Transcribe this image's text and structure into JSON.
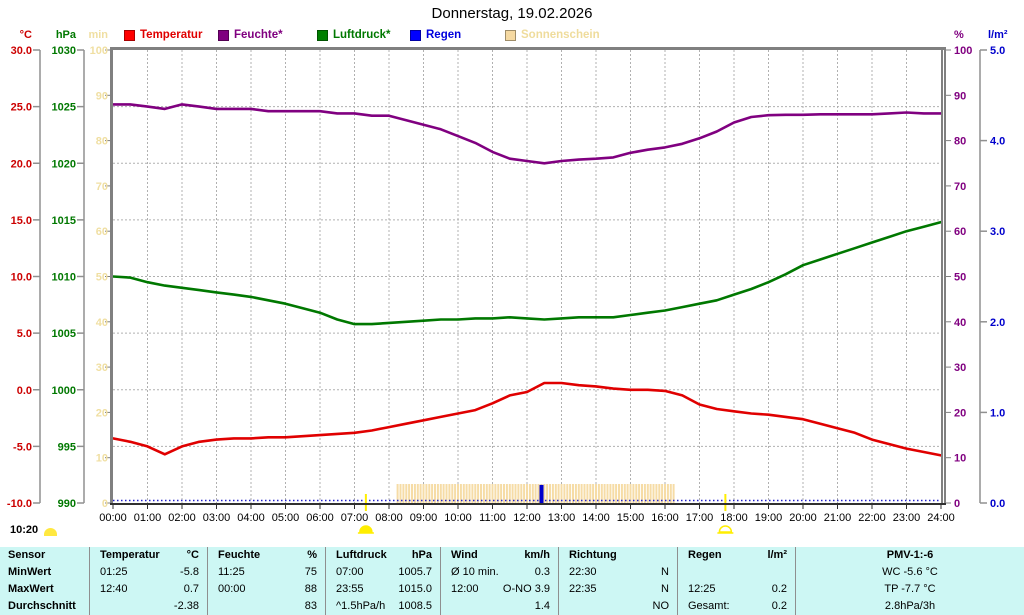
{
  "title": "Donnerstag, 19.02.2026",
  "clock": {
    "time": "10:20",
    "icon": "sun-icon"
  },
  "legend": [
    {
      "label": "Temperatur",
      "color": "#ff0000",
      "text_color": "#e00000"
    },
    {
      "label": "Feuchte*",
      "color": "#800080",
      "text_color": "#800080"
    },
    {
      "label": "Luftdruck*",
      "color": "#008000",
      "text_color": "#007800"
    },
    {
      "label": "Regen",
      "color": "#0000ff",
      "text_color": "#0000dd"
    },
    {
      "label": "Sonnenschein",
      "color": "#f5d9a2",
      "text_color": "#efdc9c"
    }
  ],
  "chart_data": {
    "type": "line",
    "title": "Donnerstag, 19.02.2026",
    "x_range_hours": [
      0,
      24
    ],
    "x_ticks": [
      "00:00",
      "01:00",
      "02:00",
      "03:00",
      "04:00",
      "05:00",
      "06:00",
      "07:00",
      "08:00",
      "09:00",
      "10:00",
      "11:00",
      "12:00",
      "13:00",
      "14:00",
      "15:00",
      "16:00",
      "17:00",
      "18:00",
      "19:00",
      "20:00",
      "21:00",
      "22:00",
      "23:00",
      "24:00"
    ],
    "grid": true,
    "axes": {
      "temperature": {
        "unit": "°C",
        "color": "#cc0000",
        "range": [
          -10,
          30
        ],
        "ticks": [
          "30.0",
          "25.0",
          "20.0",
          "15.0",
          "10.0",
          "5.0",
          "0.0",
          "-5.0",
          "-10.0"
        ]
      },
      "pressure": {
        "unit": "hPa",
        "color": "#007800",
        "range": [
          990,
          1030
        ],
        "ticks": [
          "1030",
          "1025",
          "1020",
          "1015",
          "1010",
          "1005",
          "1000",
          "995",
          "990"
        ]
      },
      "sunshine": {
        "unit": "min",
        "color": "#f0dfa2",
        "range": [
          0,
          100
        ],
        "ticks": [
          "100",
          "90",
          "80",
          "70",
          "60",
          "50",
          "40",
          "30",
          "20",
          "10",
          "0"
        ]
      },
      "humidity": {
        "unit": "%",
        "color": "#800080",
        "range": [
          0,
          100
        ],
        "ticks": [
          "100",
          "90",
          "80",
          "70",
          "60",
          "50",
          "40",
          "30",
          "20",
          "10",
          "0"
        ]
      },
      "rain": {
        "unit": "l/m²",
        "color": "#0000cc",
        "range": [
          0,
          5
        ],
        "ticks": [
          "5.0",
          "4.0",
          "3.0",
          "2.0",
          "1.0",
          "0.0"
        ]
      }
    },
    "series": [
      {
        "name": "Temperatur",
        "axis": "temperature",
        "color": "#e00000",
        "interval_h": 0.5,
        "values": [
          -4.3,
          -4.6,
          -5.0,
          -5.7,
          -5.0,
          -4.6,
          -4.4,
          -4.3,
          -4.3,
          -4.2,
          -4.2,
          -4.1,
          -4.0,
          -3.9,
          -3.8,
          -3.6,
          -3.3,
          -3.0,
          -2.7,
          -2.4,
          -2.1,
          -1.8,
          -1.2,
          -0.5,
          -0.2,
          0.6,
          0.6,
          0.4,
          0.3,
          0.1,
          0.0,
          0.0,
          -0.1,
          -0.5,
          -1.3,
          -1.7,
          -1.9,
          -2.1,
          -2.2,
          -2.4,
          -2.6,
          -3.0,
          -3.4,
          -3.8,
          -4.4,
          -4.8,
          -5.2,
          -5.5,
          -5.8
        ]
      },
      {
        "name": "Feuchte",
        "axis": "humidity",
        "color": "#800080",
        "interval_h": 0.5,
        "values": [
          88,
          88,
          87.5,
          87,
          88,
          87.5,
          87,
          87,
          87,
          86.5,
          86.5,
          86.5,
          86.5,
          86,
          86,
          85.5,
          85.5,
          84.5,
          83.5,
          82.5,
          81,
          79.5,
          77.5,
          76,
          75.5,
          75,
          75.5,
          75.8,
          76,
          76.3,
          77.3,
          78,
          78.5,
          79.3,
          80.5,
          82,
          84,
          85.2,
          85.6,
          85.7,
          85.7,
          85.8,
          85.8,
          85.8,
          85.8,
          86,
          86.2,
          86,
          86
        ]
      },
      {
        "name": "Luftdruck",
        "axis": "pressure",
        "color": "#007800",
        "interval_h": 0.5,
        "values": [
          1010.0,
          1009.9,
          1009.5,
          1009.2,
          1009.0,
          1008.8,
          1008.6,
          1008.4,
          1008.2,
          1007.9,
          1007.6,
          1007.2,
          1006.8,
          1006.2,
          1005.8,
          1005.8,
          1005.9,
          1006.0,
          1006.1,
          1006.2,
          1006.2,
          1006.3,
          1006.3,
          1006.4,
          1006.3,
          1006.2,
          1006.3,
          1006.4,
          1006.4,
          1006.4,
          1006.6,
          1006.8,
          1007.0,
          1007.3,
          1007.6,
          1007.9,
          1008.4,
          1008.9,
          1009.5,
          1010.2,
          1011.0,
          1011.5,
          1012.0,
          1012.5,
          1013.0,
          1013.5,
          1014.0,
          1014.4,
          1014.8
        ]
      }
    ],
    "sunshine_bars": {
      "start_h": 8.25,
      "end_h": 16.33,
      "step_min": 5,
      "bar_height_units": 4.2,
      "color": "#f6dca6"
    },
    "rain_event": {
      "time_h": 12.42,
      "amount_lm2": 0.2,
      "color": "#0000cc"
    },
    "rain_baseline_color": "#2222cc",
    "sun_markers": {
      "sunrise_h": 7.33,
      "sunset_h": 17.75,
      "color": "#ffee00"
    },
    "grid_color": "#b0b0b0",
    "frame_color": "#808080"
  },
  "table": {
    "row_labels": [
      "Sensor",
      "MinWert",
      "MaxWert",
      "Durchschnitt"
    ],
    "groups": [
      {
        "name": "Temperatur",
        "unit": "°C",
        "rows": [
          [
            "01:25",
            "-5.8"
          ],
          [
            "12:40",
            "0.7"
          ],
          [
            "",
            "-2.38"
          ]
        ]
      },
      {
        "name": "Feuchte",
        "unit": "%",
        "rows": [
          [
            "11:25",
            "75"
          ],
          [
            "00:00",
            "88"
          ],
          [
            "",
            "83"
          ]
        ]
      },
      {
        "name": "Luftdruck",
        "unit": "hPa",
        "rows": [
          [
            "07:00",
            "1005.7"
          ],
          [
            "23:55",
            "1015.0"
          ],
          [
            "^1.5hPa/h",
            "1008.5"
          ]
        ]
      },
      {
        "name": "Wind",
        "unit": "km/h",
        "rows": [
          [
            "Ø 10 min.",
            "0.3"
          ],
          [
            "12:00",
            "O-NO 3.9"
          ],
          [
            "",
            "1.4"
          ]
        ]
      },
      {
        "name": "Richtung",
        "unit": "",
        "rows": [
          [
            "22:30",
            "N"
          ],
          [
            "22:35",
            "N"
          ],
          [
            "",
            "NO"
          ]
        ]
      },
      {
        "name": "Regen",
        "unit": "l/m²",
        "rows": [
          [
            "",
            ""
          ],
          [
            "12:25",
            "0.2"
          ],
          [
            "Gesamt:",
            "0.2"
          ]
        ]
      },
      {
        "name": "PMV-1:-6",
        "unit": "",
        "centered": true,
        "rows": [
          [
            "WC -5.6 °C"
          ],
          [
            "TP -7.7 °C"
          ],
          [
            "2.8hPa/3h"
          ]
        ]
      }
    ]
  }
}
